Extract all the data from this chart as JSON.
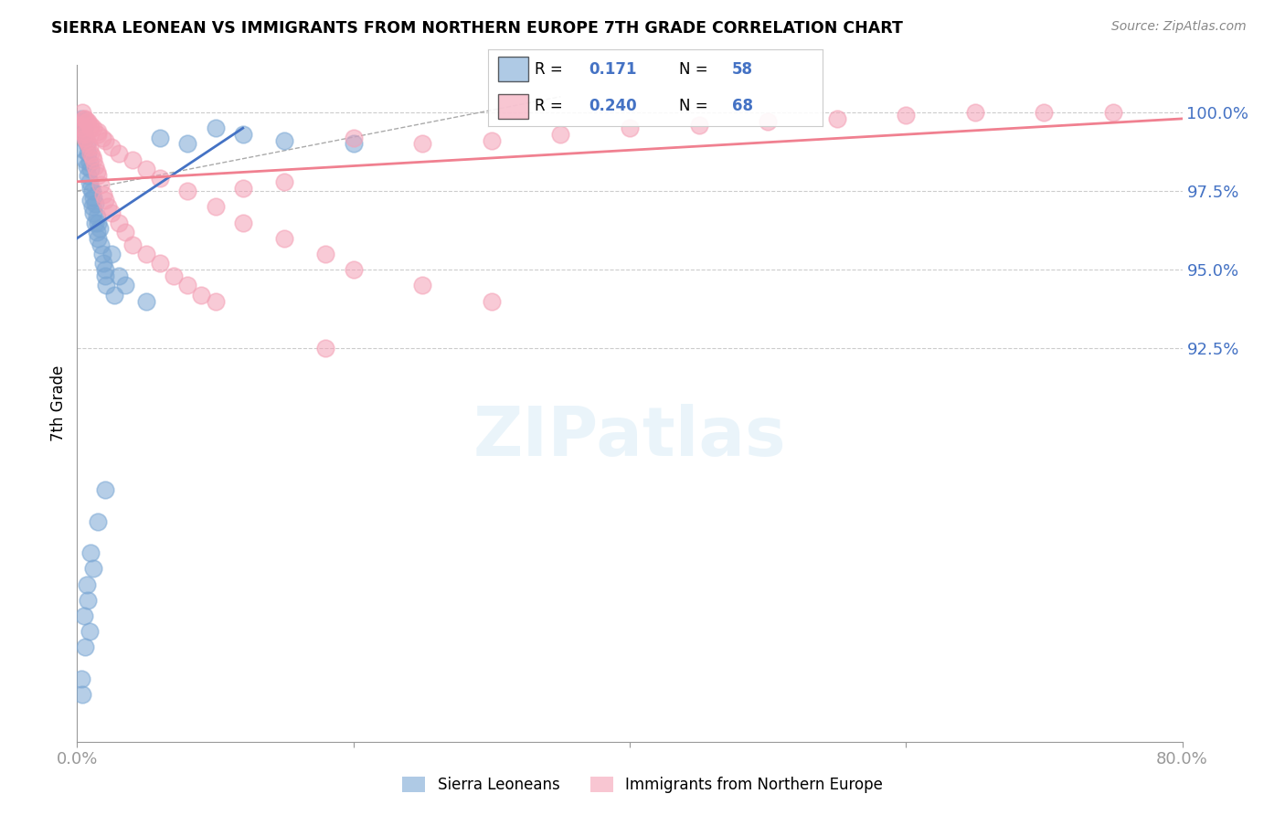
{
  "title": "SIERRA LEONEAN VS IMMIGRANTS FROM NORTHERN EUROPE 7TH GRADE CORRELATION CHART",
  "source": "Source: ZipAtlas.com",
  "ylabel": "7th Grade",
  "xlim": [
    0.0,
    80.0
  ],
  "ylim": [
    80.0,
    101.5
  ],
  "xticks": [
    0.0,
    20.0,
    40.0,
    60.0,
    80.0
  ],
  "xtick_labels": [
    "0.0%",
    "",
    "",
    "",
    "80.0%"
  ],
  "yticks": [
    92.5,
    95.0,
    97.5,
    100.0
  ],
  "ytick_labels": [
    "92.5%",
    "95.0%",
    "97.5%",
    "100.0%"
  ],
  "blue_R": 0.171,
  "blue_N": 58,
  "pink_R": 0.24,
  "pink_N": 68,
  "blue_color": "#7ba7d4",
  "pink_color": "#f4a0b5",
  "blue_line_color": "#4472C4",
  "pink_line_color": "#f08090",
  "legend_label_blue": "Sierra Leoneans",
  "legend_label_pink": "Immigrants from Northern Europe",
  "blue_x": [
    0.2,
    0.3,
    0.3,
    0.4,
    0.4,
    0.5,
    0.5,
    0.5,
    0.6,
    0.6,
    0.7,
    0.7,
    0.8,
    0.8,
    0.9,
    0.9,
    1.0,
    1.0,
    1.0,
    1.1,
    1.1,
    1.2,
    1.2,
    1.3,
    1.3,
    1.4,
    1.4,
    1.5,
    1.5,
    1.6,
    1.7,
    1.8,
    1.9,
    2.0,
    2.0,
    2.1,
    2.5,
    2.7,
    3.0,
    3.5,
    5.0,
    6.0,
    8.0,
    10.0,
    12.0,
    15.0,
    20.0,
    0.3,
    0.4,
    0.5,
    0.6,
    0.7,
    0.8,
    0.9,
    1.0,
    1.2,
    1.5,
    2.0
  ],
  "blue_y": [
    99.5,
    99.8,
    99.6,
    99.4,
    99.7,
    99.5,
    99.3,
    98.8,
    99.2,
    98.5,
    99.0,
    98.3,
    98.7,
    98.0,
    98.4,
    97.8,
    98.2,
    97.6,
    97.2,
    97.5,
    97.0,
    97.3,
    96.8,
    97.1,
    96.5,
    96.7,
    96.2,
    96.5,
    96.0,
    96.3,
    95.8,
    95.5,
    95.2,
    95.0,
    94.8,
    94.5,
    95.5,
    94.2,
    94.8,
    94.5,
    94.0,
    99.2,
    99.0,
    99.5,
    99.3,
    99.1,
    99.0,
    82.0,
    81.5,
    84.0,
    83.0,
    85.0,
    84.5,
    83.5,
    86.0,
    85.5,
    87.0,
    88.0
  ],
  "pink_x": [
    0.2,
    0.3,
    0.4,
    0.5,
    0.6,
    0.7,
    0.8,
    0.9,
    1.0,
    1.1,
    1.2,
    1.3,
    1.4,
    1.5,
    1.7,
    1.9,
    2.0,
    2.2,
    2.5,
    3.0,
    3.5,
    4.0,
    5.0,
    6.0,
    7.0,
    8.0,
    9.0,
    10.0,
    12.0,
    15.0,
    18.0,
    20.0,
    25.0,
    30.0,
    35.0,
    40.0,
    45.0,
    50.0,
    55.0,
    60.0,
    65.0,
    70.0,
    0.4,
    0.6,
    0.8,
    1.0,
    1.2,
    1.5,
    1.8,
    2.0,
    2.5,
    3.0,
    4.0,
    5.0,
    6.0,
    8.0,
    10.0,
    12.0,
    15.0,
    18.0,
    20.0,
    25.0,
    30.0,
    75.0,
    0.5,
    0.7,
    1.0,
    1.5
  ],
  "pink_y": [
    99.6,
    99.5,
    99.4,
    99.3,
    99.2,
    99.1,
    99.0,
    98.9,
    98.7,
    98.6,
    98.5,
    98.3,
    98.1,
    98.0,
    97.7,
    97.4,
    97.2,
    97.0,
    96.8,
    96.5,
    96.2,
    95.8,
    95.5,
    95.2,
    94.8,
    94.5,
    94.2,
    94.0,
    97.6,
    97.8,
    92.5,
    99.2,
    99.0,
    99.1,
    99.3,
    99.5,
    99.6,
    99.7,
    99.8,
    99.9,
    100.0,
    100.0,
    100.0,
    99.8,
    99.7,
    99.6,
    99.5,
    99.4,
    99.2,
    99.1,
    98.9,
    98.7,
    98.5,
    98.2,
    97.9,
    97.5,
    97.0,
    96.5,
    96.0,
    95.5,
    95.0,
    94.5,
    94.0,
    100.0,
    99.8,
    99.7,
    99.5,
    99.3
  ],
  "blue_trend_x0": 0.0,
  "blue_trend_y0": 96.0,
  "blue_trend_x1": 12.0,
  "blue_trend_y1": 99.5,
  "pink_trend_x0": 0.0,
  "pink_trend_y0": 97.8,
  "pink_trend_x1": 80.0,
  "pink_trend_y1": 99.8,
  "diag_dash_x0": 0.0,
  "diag_dash_y0": 97.5,
  "diag_dash_x1": 35.0,
  "diag_dash_y1": 100.5
}
